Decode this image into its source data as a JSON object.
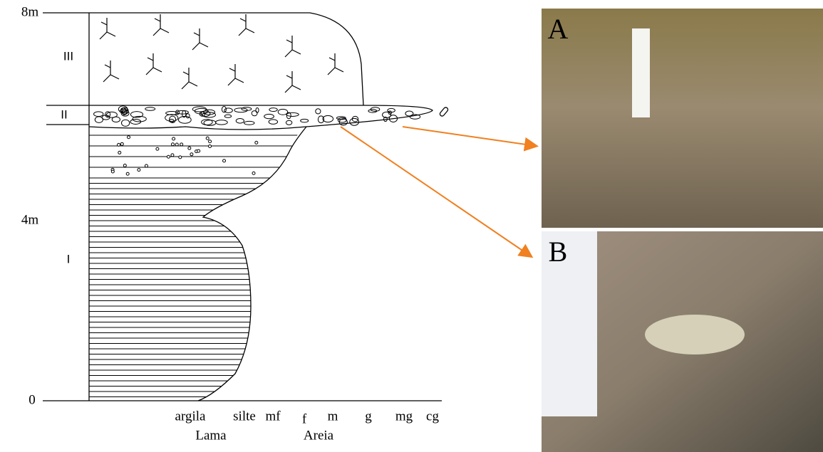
{
  "depth_labels": [
    "8m",
    "4m",
    "0"
  ],
  "units": [
    "III",
    "II",
    "I"
  ],
  "grain_sizes": {
    "lama": {
      "label": "Lama",
      "classes": [
        "argila",
        "silte"
      ]
    },
    "areia": {
      "label": "Areia",
      "classes": [
        "mf",
        "f",
        "m",
        "g",
        "mg",
        "cg"
      ]
    }
  },
  "photos": [
    {
      "label": "A"
    },
    {
      "label": "B"
    }
  ]
}
